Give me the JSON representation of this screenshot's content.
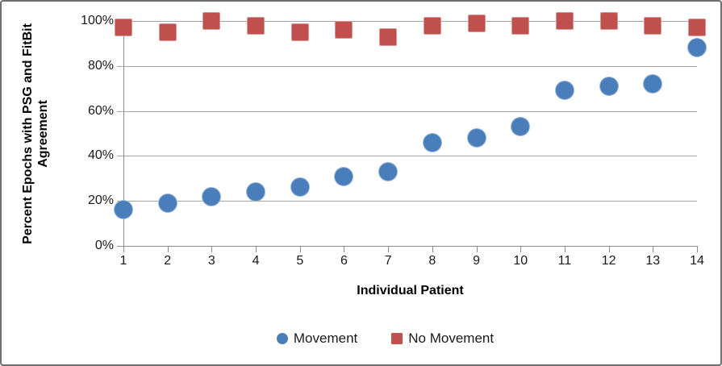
{
  "axes": {
    "y_title_line1": "Percent Epochs with PSG and FitBit",
    "y_title_line2": "Agreement",
    "x_title": "Individual Patient"
  },
  "chart_data": {
    "type": "scatter",
    "title": "",
    "xlabel": "Individual Patient",
    "ylabel": "Percent Epochs with PSG and FitBit Agreement",
    "ylabel_lines": [
      "Percent Epochs with PSG and FitBit",
      "Agreement"
    ],
    "x": [
      1,
      2,
      3,
      4,
      5,
      6,
      7,
      8,
      9,
      10,
      11,
      12,
      13,
      14
    ],
    "series": [
      {
        "name": "Movement",
        "marker": "circle",
        "color": "#4a7ebb",
        "values": [
          16,
          19,
          22,
          24,
          26,
          31,
          33,
          46,
          48,
          53,
          69,
          71,
          72,
          88
        ]
      },
      {
        "name": "No Movement",
        "marker": "square",
        "color": "#c0504d",
        "values": [
          97,
          95,
          100,
          98,
          95,
          96,
          93,
          98,
          99,
          98,
          100,
          100,
          98,
          97
        ]
      }
    ],
    "ylim": [
      0,
      100
    ],
    "ytick_values": [
      0,
      20,
      40,
      60,
      80,
      100
    ],
    "ytick_labels": [
      "0%",
      "20%",
      "40%",
      "60%",
      "80%",
      "100%"
    ],
    "grid": true,
    "legend_position": "bottom",
    "colors": {
      "gridline": "#a6a6a6",
      "axis": "#8c8c8c",
      "movement": "#4a7ebb",
      "no_movement": "#c0504d"
    }
  }
}
